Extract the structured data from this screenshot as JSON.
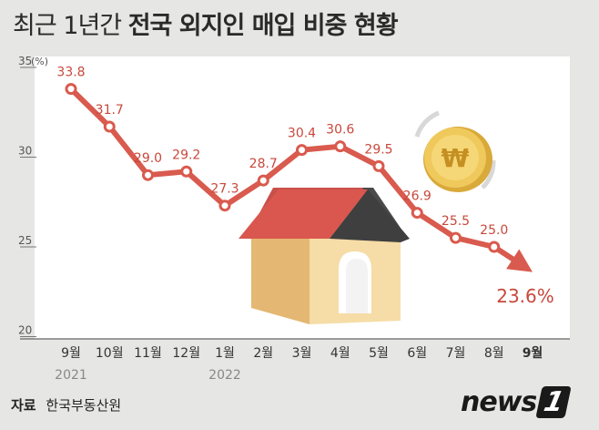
{
  "title": {
    "light": "최근 1년간",
    "bold": "전국 외지인 매입 비중 현황"
  },
  "source": {
    "label": "자료",
    "name": "한국부동산원"
  },
  "logo": {
    "text": "news",
    "mark": "1"
  },
  "chart_data": {
    "type": "line",
    "unit": "(%)",
    "categories": [
      "9월",
      "10월",
      "11월",
      "12월",
      "1월",
      "2월",
      "3월",
      "4월",
      "5월",
      "6월",
      "7월",
      "8월",
      "9월"
    ],
    "year_labels": [
      {
        "index": 0,
        "label": "2021"
      },
      {
        "index": 4,
        "label": "2022"
      }
    ],
    "values": [
      33.8,
      31.7,
      29.0,
      29.2,
      27.3,
      28.7,
      30.4,
      30.6,
      29.5,
      26.9,
      25.5,
      25.0,
      23.6
    ],
    "data_labels": [
      "33.8",
      "31.7",
      "29.0",
      "29.2",
      "27.3",
      "28.7",
      "30.4",
      "30.6",
      "29.5",
      "26.9",
      "25.5",
      "25.0",
      "23.6%"
    ],
    "yticks": [
      "20",
      "25",
      "30",
      "35"
    ],
    "ylim": [
      20,
      35
    ],
    "line_color": "#d95a4e",
    "label_color": "#c8483c"
  }
}
